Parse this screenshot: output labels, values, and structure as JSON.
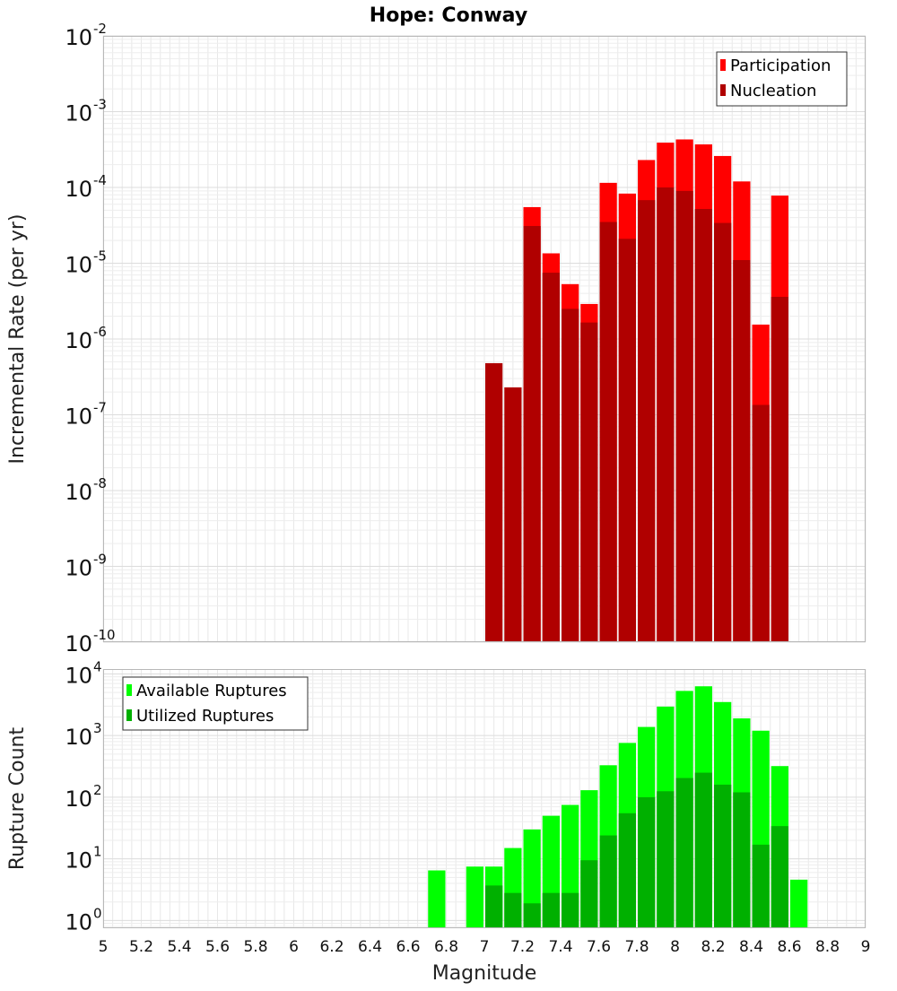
{
  "title": "Hope: Conway",
  "chart_data": [
    {
      "type": "bar",
      "panel": "top",
      "ylabel": "Incremental Rate (per yr)",
      "yscale": "log",
      "ylim": [
        1e-10,
        0.01
      ],
      "xlim": [
        5,
        9
      ],
      "bin_width": 0.1,
      "grid": true,
      "legend_position": "top-right",
      "series": [
        {
          "name": "Participation",
          "color": "#ff0000",
          "x": [
            7.25,
            7.35,
            7.45,
            7.55,
            7.65,
            7.75,
            7.85,
            7.95,
            8.05,
            8.15,
            8.25,
            8.35,
            8.45,
            8.55
          ],
          "values": [
            5.5e-05,
            1.35e-05,
            5.3e-06,
            2.9e-06,
            0.000115,
            8.3e-05,
            0.00023,
            0.00039,
            0.00043,
            0.00037,
            0.00026,
            0.00012,
            1.55e-06,
            7.8e-05
          ]
        },
        {
          "name": "Nucleation",
          "color": "#b00000",
          "x": [
            7.05,
            7.15,
            7.25,
            7.35,
            7.45,
            7.55,
            7.65,
            7.75,
            7.85,
            7.95,
            8.05,
            8.15,
            8.25,
            8.35,
            8.45,
            8.55
          ],
          "values": [
            4.8e-07,
            2.3e-07,
            3.1e-05,
            7.5e-06,
            2.5e-06,
            1.65e-06,
            3.5e-05,
            2.1e-05,
            6.8e-05,
            0.0001,
            9e-05,
            5.2e-05,
            3.4e-05,
            1.1e-05,
            1.35e-07,
            3.6e-06
          ]
        }
      ],
      "y_ticks": [
        {
          "base": "10",
          "exp": "-10",
          "value": 1e-10
        },
        {
          "base": "10",
          "exp": "-9",
          "value": 1e-09
        },
        {
          "base": "10",
          "exp": "-8",
          "value": 1e-08
        },
        {
          "base": "10",
          "exp": "-7",
          "value": 1e-07
        },
        {
          "base": "10",
          "exp": "-6",
          "value": 1e-06
        },
        {
          "base": "10",
          "exp": "-5",
          "value": 1e-05
        },
        {
          "base": "10",
          "exp": "-4",
          "value": 0.0001
        },
        {
          "base": "10",
          "exp": "-3",
          "value": 0.001
        },
        {
          "base": "10",
          "exp": "-2",
          "value": 0.01
        }
      ]
    },
    {
      "type": "bar",
      "panel": "bottom",
      "xlabel": "Magnitude",
      "ylabel": "Rupture Count",
      "yscale": "log",
      "ylim": [
        0.75,
        12000
      ],
      "xlim": [
        5,
        9
      ],
      "bin_width": 0.1,
      "grid": true,
      "legend_position": "top-left",
      "series": [
        {
          "name": "Available Ruptures",
          "color": "#00ff00",
          "x": [
            6.75,
            6.95,
            7.05,
            7.15,
            7.25,
            7.35,
            7.45,
            7.55,
            7.65,
            7.75,
            7.85,
            7.95,
            8.05,
            8.15,
            8.25,
            8.35,
            8.45,
            8.55,
            8.65
          ],
          "values": [
            6.5,
            7.5,
            7.5,
            15,
            30,
            50,
            75,
            130,
            330,
            760,
            1380,
            2950,
            5300,
            6300,
            3500,
            1900,
            1200,
            320,
            4.6
          ]
        },
        {
          "name": "Utilized Ruptures",
          "color": "#00b000",
          "x": [
            7.05,
            7.15,
            7.25,
            7.35,
            7.45,
            7.55,
            7.65,
            7.75,
            7.85,
            7.95,
            8.05,
            8.15,
            8.25,
            8.35,
            8.45,
            8.55
          ],
          "values": [
            3.7,
            2.8,
            1.9,
            2.8,
            2.8,
            9.5,
            24,
            55,
            100,
            125,
            205,
            250,
            160,
            120,
            17,
            34
          ]
        }
      ],
      "y_ticks": [
        {
          "base": "10",
          "exp": "0",
          "value": 1
        },
        {
          "base": "10",
          "exp": "1",
          "value": 10
        },
        {
          "base": "10",
          "exp": "2",
          "value": 100
        },
        {
          "base": "10",
          "exp": "3",
          "value": 1000
        },
        {
          "base": "10",
          "exp": "4",
          "value": 10000
        }
      ],
      "x_ticks": [
        "5",
        "5.2",
        "5.4",
        "5.6",
        "5.8",
        "6",
        "6.2",
        "6.4",
        "6.6",
        "6.8",
        "7",
        "7.2",
        "7.4",
        "7.6",
        "7.8",
        "8",
        "8.2",
        "8.4",
        "8.6",
        "8.8",
        "9"
      ]
    }
  ]
}
